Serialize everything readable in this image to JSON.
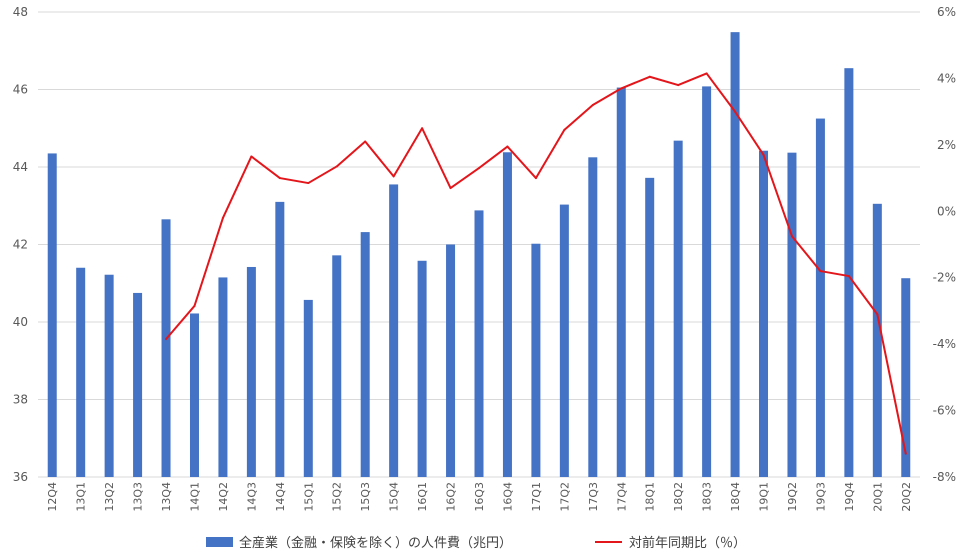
{
  "chart_data": {
    "type": "bar+line",
    "categories": [
      "12Q4",
      "13Q1",
      "13Q2",
      "13Q3",
      "13Q4",
      "14Q1",
      "14Q2",
      "14Q3",
      "14Q4",
      "15Q1",
      "15Q2",
      "15Q3",
      "15Q4",
      "16Q1",
      "16Q2",
      "16Q3",
      "16Q4",
      "17Q1",
      "17Q2",
      "17Q3",
      "17Q4",
      "18Q1",
      "18Q2",
      "18Q3",
      "18Q4",
      "19Q1",
      "19Q2",
      "19Q3",
      "19Q4",
      "20Q1",
      "20Q2"
    ],
    "series": [
      {
        "name": "全産業（金融・保険を除く）の人件費（兆円）",
        "type": "bar",
        "axis": "left",
        "color": "#4472C4",
        "values": [
          44.35,
          41.4,
          41.22,
          40.75,
          42.65,
          40.22,
          41.15,
          41.42,
          43.1,
          40.57,
          41.72,
          42.32,
          43.55,
          41.58,
          42.0,
          42.88,
          44.38,
          42.02,
          43.03,
          44.25,
          46.05,
          43.72,
          44.68,
          46.08,
          47.48,
          44.42,
          44.37,
          45.25,
          46.55,
          43.05,
          41.13
        ]
      },
      {
        "name": "対前年同期比（％）",
        "type": "line",
        "axis": "right",
        "color": "#E3161B",
        "values": [
          null,
          null,
          null,
          null,
          -3.85,
          -2.85,
          -0.2,
          1.65,
          1.0,
          0.85,
          1.35,
          2.1,
          1.05,
          2.5,
          0.7,
          1.3,
          1.95,
          1.0,
          2.45,
          3.2,
          3.7,
          4.05,
          3.8,
          4.15,
          3.0,
          1.7,
          -0.75,
          -1.8,
          -1.95,
          -3.1,
          -7.3
        ]
      }
    ],
    "y_left": {
      "ylim": [
        36,
        48
      ],
      "ticks": [
        "36",
        "38",
        "40",
        "42",
        "44",
        "46",
        "48"
      ]
    },
    "y_right": {
      "ylim": [
        -8,
        6
      ],
      "ticks": [
        "-8%",
        "-6%",
        "-4%",
        "-2%",
        "0%",
        "2%",
        "4%",
        "6%"
      ]
    },
    "grid": true,
    "legend_position": "bottom"
  }
}
